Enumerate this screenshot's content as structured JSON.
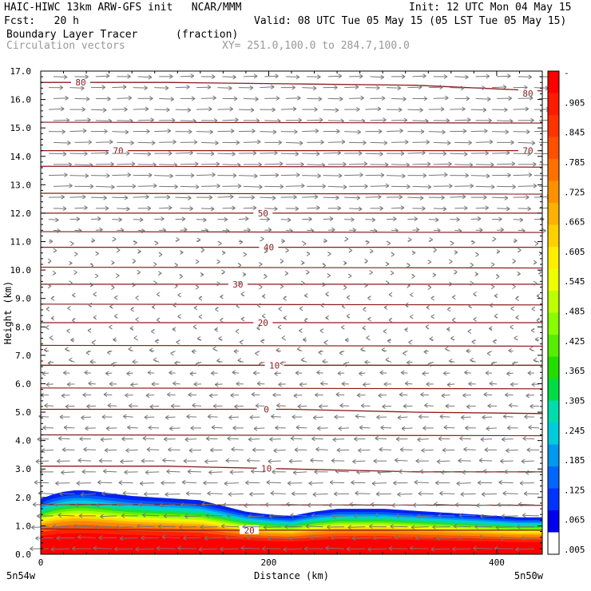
{
  "header": {
    "model_line": "HAIC-HIWC 13km ARW-GFS init   NCAR/MMM",
    "init_line": "Init: 12 UTC Mon 04 May 15",
    "fcst_line": "Fcst:   20 h",
    "valid_line": "Valid: 08 UTC Tue 05 May 15 (05 LST Tue 05 May 15)",
    "field_name": "Boundary Layer Tracer",
    "field_units": "(fraction)",
    "vector_name": "Circulation vectors",
    "xsec_line": "XY= 251.0,100.0 to 284.7,100.0"
  },
  "chart_data": {
    "type": "heatmap",
    "title": "Boundary Layer Tracer",
    "units": "(fraction)",
    "xlabel": "Distance (km)",
    "ylabel": "Height (km)",
    "xlim": [
      0,
      440
    ],
    "ylim": [
      0,
      17
    ],
    "x_ticks": [
      {
        "value": 0,
        "label": "0"
      },
      {
        "value": 200,
        "label": "200"
      },
      {
        "value": 400,
        "label": "400"
      }
    ],
    "y_ticks": [
      "0.0",
      "1.0",
      "2.0",
      "3.0",
      "4.0",
      "5.0",
      "6.0",
      "7.0",
      "8.0",
      "9.0",
      "10.0",
      "11.0",
      "12.0",
      "13.0",
      "14.0",
      "15.0",
      "16.0",
      "17.0"
    ],
    "endpoint_labels": {
      "left": "5n54w",
      "right": "5n50w"
    },
    "colorbar": {
      "labels": [
        "-",
        ".905",
        ".845",
        ".785",
        ".725",
        ".665",
        ".605",
        ".545",
        ".485",
        ".425",
        ".365",
        ".305",
        ".245",
        ".185",
        ".125",
        ".065",
        ".005"
      ],
      "colors": [
        "#ff0000",
        "#ff1a00",
        "#ff3300",
        "#ff5000",
        "#ff7000",
        "#ff9000",
        "#ffb000",
        "#ffd000",
        "#ffee00",
        "#eeff00",
        "#bbff00",
        "#88ff00",
        "#55ee00",
        "#22dd00",
        "#00dd44",
        "#00ddaa",
        "#00ccdd",
        "#0099ee",
        "#0066ff",
        "#0033ff",
        "#0000ee",
        "#ffffff"
      ]
    },
    "tracer_top_km": {
      "x": [
        0,
        10,
        20,
        30,
        40,
        60,
        80,
        100,
        120,
        140,
        160,
        180,
        200,
        220,
        240,
        260,
        280,
        300,
        320,
        340,
        360,
        380,
        400,
        420,
        440
      ],
      "y": [
        1.95,
        2.1,
        2.2,
        2.25,
        2.25,
        2.15,
        2.05,
        2.0,
        1.95,
        1.9,
        1.7,
        1.5,
        1.4,
        1.35,
        1.5,
        1.6,
        1.6,
        1.6,
        1.55,
        1.5,
        1.45,
        1.4,
        1.35,
        1.3,
        1.3
      ]
    },
    "contour_interval": 10,
    "contour_levels": [
      {
        "label": "80",
        "label_x": 35,
        "heights_km": [
          16.6,
          16.6,
          16.55,
          16.5,
          16.3
        ]
      },
      {
        "label": "70",
        "label_x": 68,
        "heights_km": [
          14.2,
          14.2,
          14.2,
          14.2,
          14.2
        ]
      },
      {
        "label": "50",
        "label_x": 195,
        "heights_km": [
          12.0,
          12.0,
          12.0,
          12.0,
          12.0
        ]
      },
      {
        "label": "40",
        "label_x": 200,
        "heights_km": [
          10.8,
          10.8,
          10.8,
          10.8,
          10.8
        ]
      },
      {
        "label": "30",
        "label_x": 173,
        "heights_km": [
          9.5,
          9.5,
          9.5,
          9.5,
          9.5
        ]
      },
      {
        "label": "20",
        "label_x": 195,
        "heights_km": [
          8.15,
          8.15,
          8.15,
          8.15,
          8.15
        ]
      },
      {
        "label": "10",
        "label_x": 205,
        "heights_km": [
          6.65,
          6.65,
          6.65,
          6.65,
          6.65
        ]
      },
      {
        "label": "0",
        "label_x": 198,
        "heights_km": [
          5.1,
          5.1,
          5.1,
          5.0,
          4.95
        ]
      },
      {
        "label": "10",
        "label_x": 198,
        "heights_km": [
          3.1,
          3.1,
          3.0,
          2.9,
          2.9
        ]
      },
      {
        "label": "20",
        "label_x": 183,
        "heights_km": [
          0.9,
          0.85,
          0.85,
          0.85,
          0.85
        ]
      }
    ],
    "unlabeled_contour_heights_km": [
      15.2,
      13.65,
      12.7,
      11.35,
      10.1,
      8.8,
      7.35,
      5.85,
      4.2,
      1.75
    ],
    "vector_field": {
      "description_levels_km": [
        17.0,
        13.0,
        11.0,
        5.0,
        0.0
      ],
      "u_relative": [
        0.7,
        1.0,
        0.2,
        -0.5,
        -1.0
      ]
    }
  }
}
